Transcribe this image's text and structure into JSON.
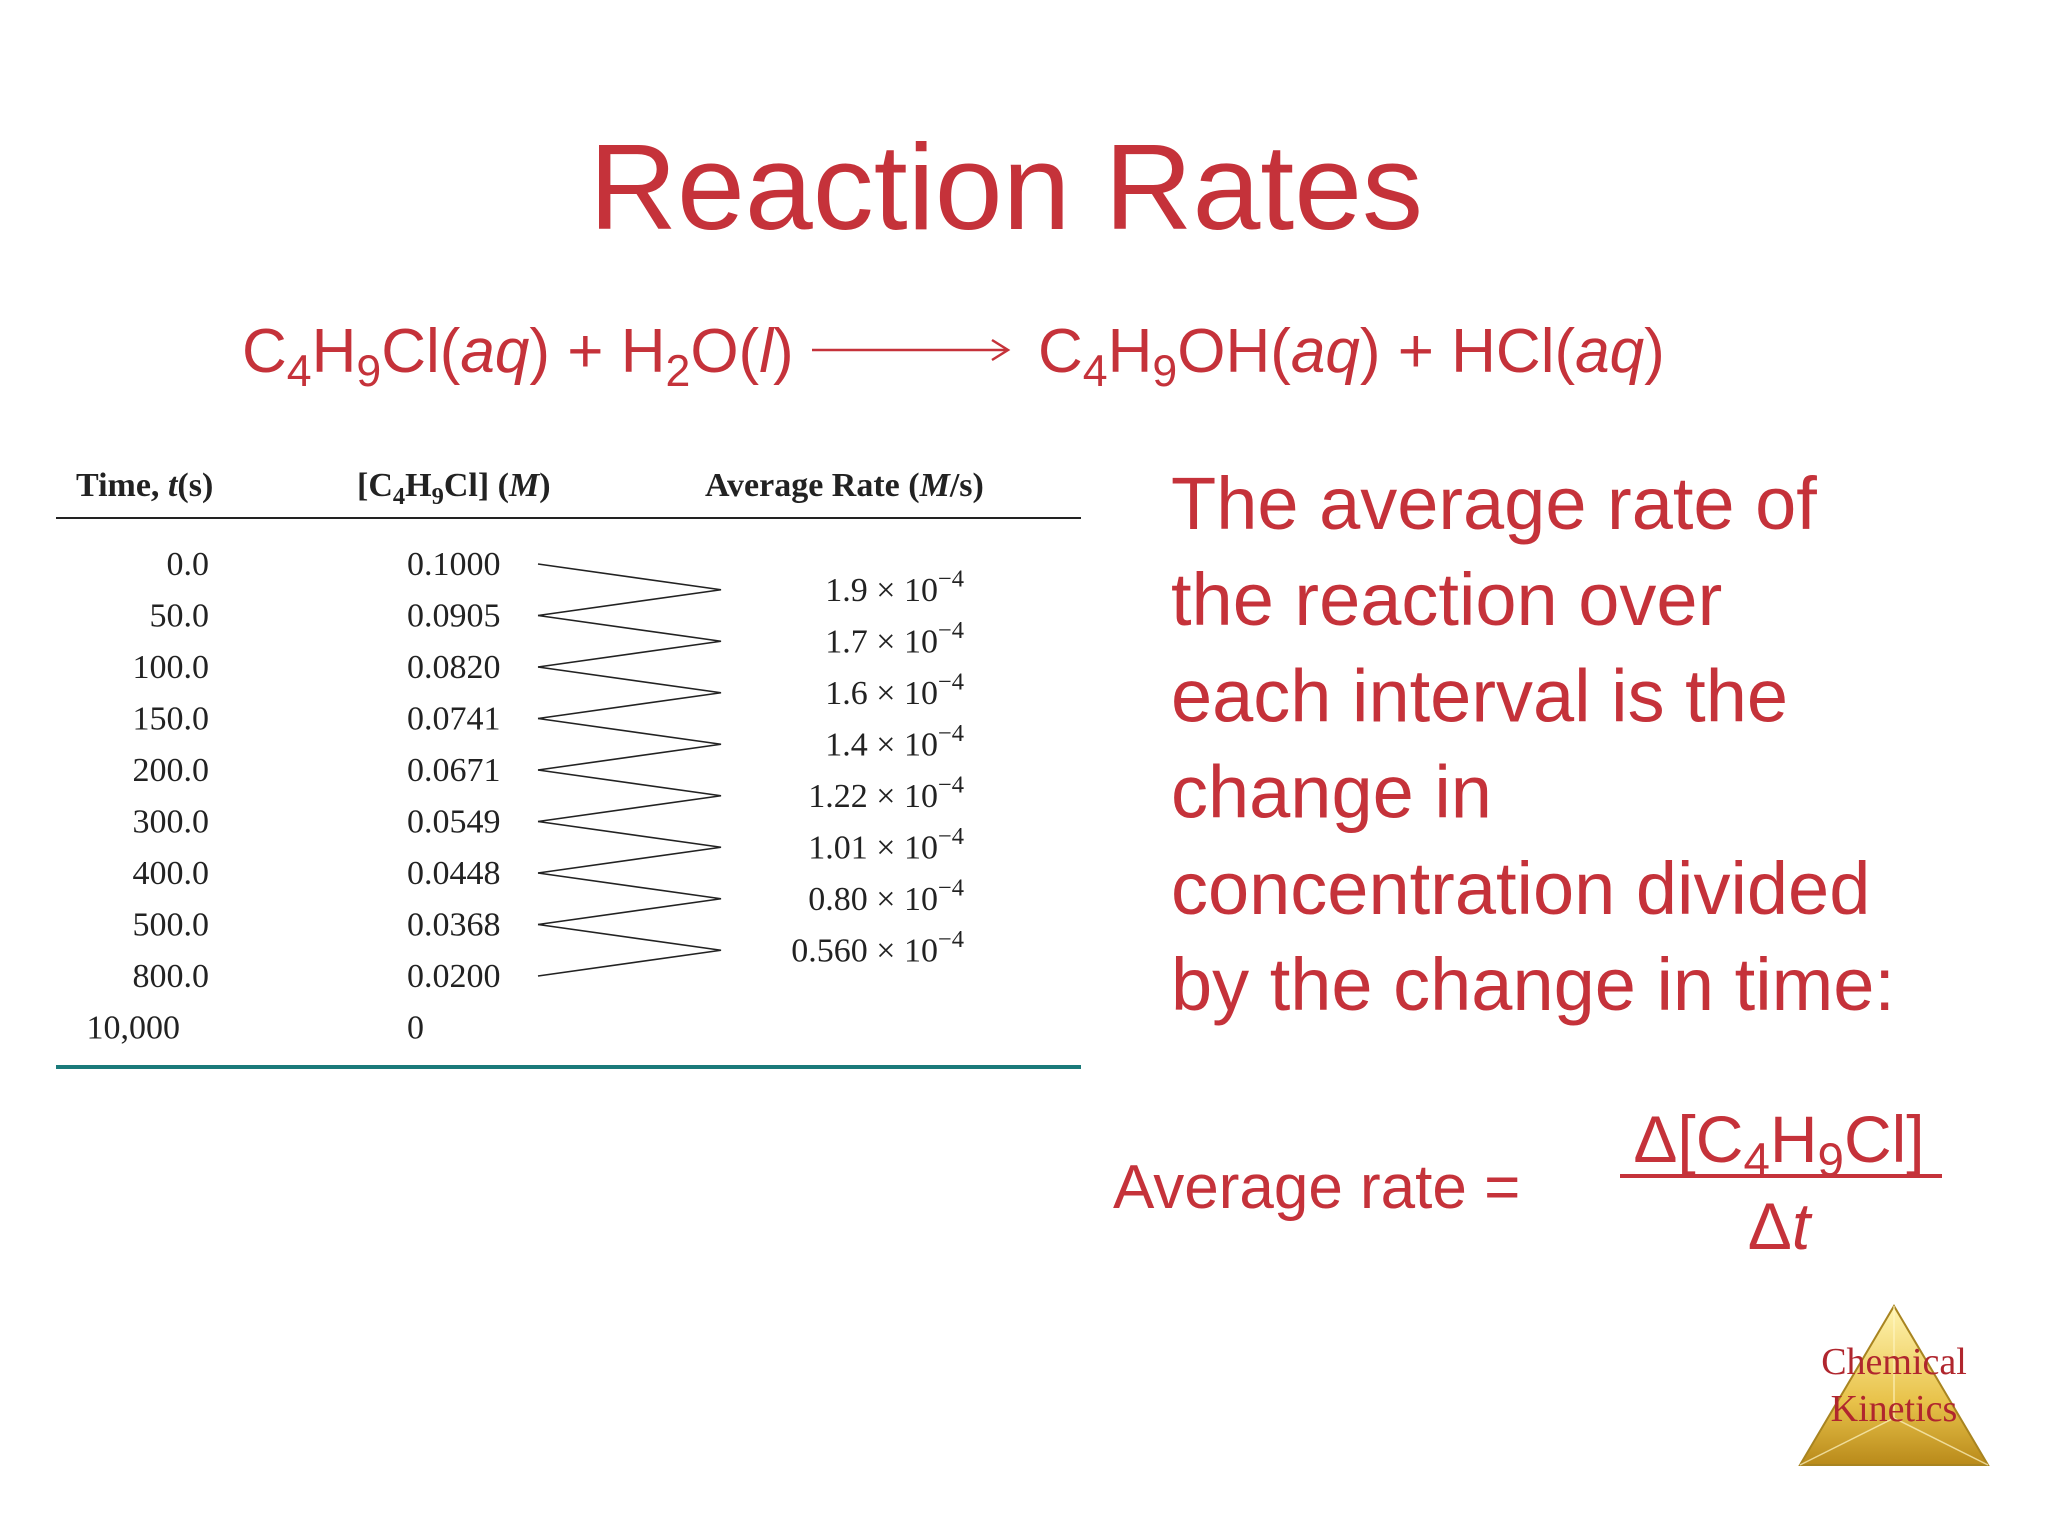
{
  "title": "Reaction Rates",
  "equation": {
    "reactants": [
      "C",
      "4",
      "H",
      "9",
      "Cl(",
      "aq",
      ") + H",
      "2",
      "O(",
      "l",
      ")"
    ],
    "products": [
      "C",
      "4",
      "H",
      "9",
      "OH(",
      "aq",
      ") + HCl(",
      "aq",
      ")"
    ]
  },
  "table": {
    "header": [
      [
        "Time, ",
        "t",
        "(s)"
      ],
      [
        "[C",
        "4",
        "H",
        "9",
        "Cl] (",
        "M",
        ")"
      ],
      [
        "Average Rate (",
        "M",
        "/s)"
      ]
    ],
    "rows": [
      [
        "0.0",
        "0.1000"
      ],
      [
        "50.0",
        "0.0905"
      ],
      [
        "100.0",
        "0.0820"
      ],
      [
        "150.0",
        "0.0741"
      ],
      [
        "200.0",
        "0.0671"
      ],
      [
        "300.0",
        "0.0549"
      ],
      [
        "400.0",
        "0.0448"
      ],
      [
        "500.0",
        "0.0368"
      ],
      [
        "800.0",
        "0.0200"
      ],
      [
        "10,000",
        "0"
      ]
    ],
    "rates": [
      [
        "1.9 × 10",
        "−4"
      ],
      [
        "1.7 × 10",
        "−4"
      ],
      [
        "1.6 × 10",
        "−4"
      ],
      [
        "1.4 × 10",
        "−4"
      ],
      [
        "1.22 × 10",
        "−4"
      ],
      [
        "1.01 × 10",
        "−4"
      ],
      [
        "0.80 × 10",
        "−4"
      ],
      [
        "0.560 × 10",
        "−4"
      ]
    ]
  },
  "description": [
    "The average rate of",
    "the reaction over",
    "each interval is the",
    "change in",
    "concentration divided",
    "by the change in time:"
  ],
  "formula": {
    "label": "Average rate =",
    "numerator": [
      "Δ[C",
      "4",
      "H",
      "9",
      "Cl]"
    ],
    "denominator": [
      "Δ",
      "t"
    ]
  },
  "logo": [
    "Chemical",
    "Kinetics"
  ]
}
